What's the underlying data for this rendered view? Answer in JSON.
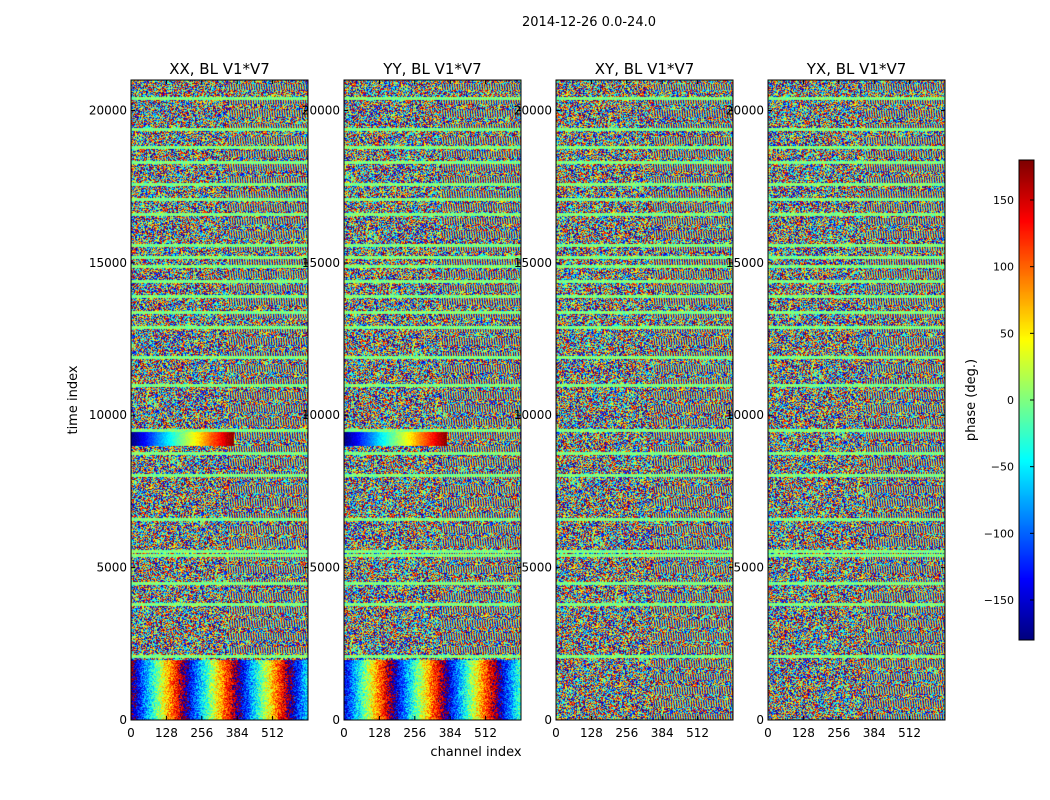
{
  "figure": {
    "suptitle": "2014-12-26 0.0-24.0",
    "xlabel": "channel index",
    "ylabel": "time index"
  },
  "chart_data": {
    "type": "heatmap",
    "title": "2014-12-26 0.0-24.0",
    "xlabel": "channel index",
    "ylabel": "time index",
    "xlim": [
      0,
      640
    ],
    "ylim": [
      0,
      21000
    ],
    "x_ticks": [
      0,
      128,
      256,
      384,
      512
    ],
    "y_ticks": [
      0,
      5000,
      10000,
      15000,
      20000
    ],
    "panels": [
      {
        "name": "XX, BL V1*V7"
      },
      {
        "name": "YY, BL V1*V7"
      },
      {
        "name": "XY, BL V1*V7"
      },
      {
        "name": "YX, BL V1*V7"
      }
    ],
    "colorbar": {
      "label": "phase (deg.)",
      "range": [
        -180,
        180
      ],
      "ticks": [
        -150,
        -100,
        -50,
        0,
        50,
        100,
        150
      ],
      "colormap": "jet"
    },
    "gap_rows_time_index": [
      2100,
      3800,
      4500,
      5400,
      5550,
      6600,
      8050,
      8750,
      9500,
      11000,
      11900,
      12900,
      13400,
      13900,
      14400,
      14900,
      15200,
      15600,
      16600,
      17100,
      17600,
      18300,
      18800,
      19400,
      20400
    ]
  }
}
